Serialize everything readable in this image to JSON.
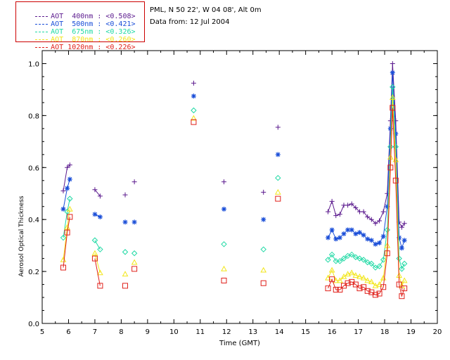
{
  "header": {
    "location": "PML, N 50 22', W 04 08', Alt 0m",
    "date": "Data from: 12 Jul 2004"
  },
  "legend": [
    {
      "label": "AOT  400nm : <0.508>",
      "color": "#5b1a8e"
    },
    {
      "label": "AOT  500nm : <0.421>",
      "color": "#1a4ed8"
    },
    {
      "label": "AOT  675nm : <0.326>",
      "color": "#1ed9a4"
    },
    {
      "label": "AOT  870nm : <0.260>",
      "color": "#f2e61a"
    },
    {
      "label": "AOT 1020nm : <0.226>",
      "color": "#e0201a"
    }
  ],
  "chart_data": {
    "type": "line",
    "title": "",
    "xlabel": "Time (GMT)",
    "ylabel": "Aerosol Optical Thickness",
    "xlim": [
      5,
      20
    ],
    "ylim": [
      0.0,
      1.05
    ],
    "xticks": [
      5,
      6,
      7,
      8,
      9,
      10,
      11,
      12,
      13,
      14,
      15,
      16,
      17,
      18,
      19,
      20
    ],
    "yticks": [
      0.0,
      0.2,
      0.4,
      0.6,
      0.8,
      1.0
    ],
    "xtick_labels": [
      "5",
      "6",
      "7",
      "8",
      "9",
      "10",
      "11",
      "12",
      "13",
      "14",
      "15",
      "16",
      "17",
      "18",
      "19",
      "20"
    ],
    "ytick_labels": [
      "0.0",
      "0.2",
      "0.4",
      "0.6",
      "0.8",
      "1.0"
    ],
    "grid": false,
    "legend_position": "top-left outside",
    "series": [
      {
        "name": "AOT  400nm : <0.508>",
        "color": "#5b1a8e",
        "marker": "plus",
        "segments": [
          [
            [
              5.8,
              0.51
            ],
            [
              5.95,
              0.6
            ],
            [
              6.05,
              0.61
            ]
          ],
          [
            [
              7.0,
              0.515
            ],
            [
              7.2,
              0.49
            ]
          ],
          [
            [
              8.15,
              0.495
            ]
          ],
          [
            [
              8.5,
              0.545
            ]
          ],
          [
            [
              10.75,
              0.925
            ]
          ],
          [
            [
              11.9,
              0.545
            ]
          ],
          [
            [
              13.4,
              0.505
            ]
          ],
          [
            [
              13.95,
              0.755
            ]
          ],
          [
            [
              15.85,
              0.43
            ],
            [
              16.0,
              0.47
            ],
            [
              16.15,
              0.415
            ],
            [
              16.3,
              0.42
            ],
            [
              16.45,
              0.455
            ],
            [
              16.6,
              0.455
            ],
            [
              16.75,
              0.46
            ],
            [
              16.9,
              0.445
            ],
            [
              17.05,
              0.43
            ],
            [
              17.2,
              0.43
            ],
            [
              17.35,
              0.41
            ],
            [
              17.5,
              0.4
            ],
            [
              17.65,
              0.385
            ],
            [
              17.8,
              0.395
            ],
            [
              17.95,
              0.43
            ],
            [
              18.1,
              0.5
            ],
            [
              18.22,
              0.78
            ],
            [
              18.3,
              1.0
            ],
            [
              18.42,
              0.78
            ],
            [
              18.55,
              0.39
            ],
            [
              18.65,
              0.37
            ],
            [
              18.75,
              0.385
            ]
          ]
        ]
      },
      {
        "name": "AOT  500nm : <0.421>",
        "color": "#1a4ed8",
        "marker": "asterisk",
        "segments": [
          [
            [
              5.8,
              0.44
            ],
            [
              5.95,
              0.52
            ],
            [
              6.05,
              0.555
            ]
          ],
          [
            [
              7.0,
              0.42
            ],
            [
              7.2,
              0.41
            ]
          ],
          [
            [
              8.15,
              0.39
            ]
          ],
          [
            [
              8.5,
              0.39
            ]
          ],
          [
            [
              10.75,
              0.875
            ]
          ],
          [
            [
              11.9,
              0.44
            ]
          ],
          [
            [
              13.4,
              0.4
            ]
          ],
          [
            [
              13.95,
              0.65
            ]
          ],
          [
            [
              15.85,
              0.33
            ],
            [
              16.0,
              0.36
            ],
            [
              16.15,
              0.325
            ],
            [
              16.3,
              0.33
            ],
            [
              16.45,
              0.345
            ],
            [
              16.6,
              0.36
            ],
            [
              16.75,
              0.36
            ],
            [
              16.9,
              0.345
            ],
            [
              17.05,
              0.35
            ],
            [
              17.2,
              0.34
            ],
            [
              17.35,
              0.325
            ],
            [
              17.5,
              0.32
            ],
            [
              17.65,
              0.305
            ],
            [
              17.8,
              0.31
            ],
            [
              17.95,
              0.335
            ],
            [
              18.1,
              0.45
            ],
            [
              18.22,
              0.75
            ],
            [
              18.3,
              0.965
            ],
            [
              18.42,
              0.73
            ],
            [
              18.55,
              0.33
            ],
            [
              18.65,
              0.29
            ],
            [
              18.75,
              0.32
            ]
          ]
        ]
      },
      {
        "name": "AOT  675nm : <0.326>",
        "color": "#1ed9a4",
        "marker": "diamond",
        "segments": [
          [
            [
              5.8,
              0.33
            ],
            [
              5.95,
              0.43
            ],
            [
              6.05,
              0.48
            ]
          ],
          [
            [
              7.0,
              0.32
            ],
            [
              7.2,
              0.285
            ]
          ],
          [
            [
              8.15,
              0.275
            ]
          ],
          [
            [
              8.5,
              0.27
            ]
          ],
          [
            [
              10.75,
              0.82
            ]
          ],
          [
            [
              11.9,
              0.305
            ]
          ],
          [
            [
              13.4,
              0.285
            ]
          ],
          [
            [
              13.95,
              0.56
            ]
          ],
          [
            [
              15.85,
              0.245
            ],
            [
              16.0,
              0.265
            ],
            [
              16.15,
              0.24
            ],
            [
              16.3,
              0.24
            ],
            [
              16.45,
              0.25
            ],
            [
              16.6,
              0.26
            ],
            [
              16.75,
              0.265
            ],
            [
              16.9,
              0.255
            ],
            [
              17.05,
              0.25
            ],
            [
              17.2,
              0.245
            ],
            [
              17.35,
              0.235
            ],
            [
              17.5,
              0.23
            ],
            [
              17.65,
              0.215
            ],
            [
              17.8,
              0.22
            ],
            [
              17.95,
              0.245
            ],
            [
              18.1,
              0.36
            ],
            [
              18.22,
              0.68
            ],
            [
              18.3,
              0.91
            ],
            [
              18.42,
              0.68
            ],
            [
              18.55,
              0.25
            ],
            [
              18.65,
              0.21
            ],
            [
              18.75,
              0.23
            ]
          ]
        ]
      },
      {
        "name": "AOT  870nm : <0.260>",
        "color": "#f2e61a",
        "marker": "triangle",
        "segments": [
          [
            [
              5.8,
              0.245
            ],
            [
              5.95,
              0.37
            ],
            [
              6.05,
              0.44
            ]
          ],
          [
            [
              7.0,
              0.27
            ],
            [
              7.2,
              0.195
            ]
          ],
          [
            [
              8.15,
              0.19
            ]
          ],
          [
            [
              8.5,
              0.235
            ]
          ],
          [
            [
              10.75,
              0.79
            ]
          ],
          [
            [
              11.9,
              0.21
            ]
          ],
          [
            [
              13.4,
              0.205
            ]
          ],
          [
            [
              13.95,
              0.505
            ]
          ],
          [
            [
              15.85,
              0.175
            ],
            [
              16.0,
              0.205
            ],
            [
              16.15,
              0.165
            ],
            [
              16.3,
              0.165
            ],
            [
              16.45,
              0.18
            ],
            [
              16.6,
              0.19
            ],
            [
              16.75,
              0.195
            ],
            [
              16.9,
              0.185
            ],
            [
              17.05,
              0.18
            ],
            [
              17.2,
              0.175
            ],
            [
              17.35,
              0.165
            ],
            [
              17.5,
              0.16
            ],
            [
              17.65,
              0.145
            ],
            [
              17.8,
              0.15
            ],
            [
              17.95,
              0.175
            ],
            [
              18.1,
              0.3
            ],
            [
              18.22,
              0.64
            ],
            [
              18.3,
              0.87
            ],
            [
              18.42,
              0.63
            ],
            [
              18.55,
              0.185
            ],
            [
              18.65,
              0.145
            ],
            [
              18.75,
              0.165
            ]
          ]
        ]
      },
      {
        "name": "AOT 1020nm : <0.226>",
        "color": "#e0201a",
        "marker": "square",
        "segments": [
          [
            [
              5.8,
              0.215
            ],
            [
              5.95,
              0.35
            ],
            [
              6.05,
              0.41
            ]
          ],
          [
            [
              7.0,
              0.25
            ],
            [
              7.2,
              0.145
            ]
          ],
          [
            [
              8.15,
              0.145
            ]
          ],
          [
            [
              8.5,
              0.21
            ]
          ],
          [
            [
              10.75,
              0.775
            ]
          ],
          [
            [
              11.9,
              0.165
            ]
          ],
          [
            [
              13.4,
              0.155
            ]
          ],
          [
            [
              13.95,
              0.48
            ]
          ],
          [
            [
              15.85,
              0.135
            ],
            [
              16.0,
              0.17
            ],
            [
              16.15,
              0.13
            ],
            [
              16.3,
              0.13
            ],
            [
              16.45,
              0.145
            ],
            [
              16.6,
              0.155
            ],
            [
              16.75,
              0.16
            ],
            [
              16.9,
              0.15
            ],
            [
              17.05,
              0.135
            ],
            [
              17.2,
              0.14
            ],
            [
              17.35,
              0.125
            ],
            [
              17.5,
              0.12
            ],
            [
              17.65,
              0.11
            ],
            [
              17.8,
              0.115
            ],
            [
              17.95,
              0.14
            ],
            [
              18.1,
              0.27
            ],
            [
              18.22,
              0.6
            ],
            [
              18.3,
              0.83
            ],
            [
              18.42,
              0.55
            ],
            [
              18.55,
              0.15
            ],
            [
              18.65,
              0.105
            ],
            [
              18.75,
              0.135
            ]
          ]
        ]
      }
    ]
  }
}
